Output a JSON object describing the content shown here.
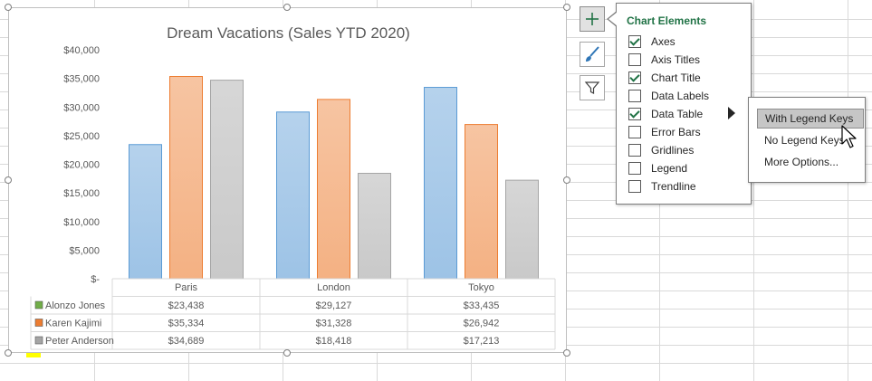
{
  "chart_data": {
    "type": "bar",
    "title": "Dream Vacations (Sales YTD 2020)",
    "categories": [
      "Paris",
      "London",
      "Tokyo"
    ],
    "series": [
      {
        "name": "Alonzo Jones",
        "values": [
          23438,
          29127,
          33435
        ],
        "color": "#9dc3e6",
        "key_color": "#70ad47"
      },
      {
        "name": "Karen Kajimi",
        "values": [
          35334,
          31328,
          26942
        ],
        "color": "#f4b183",
        "key_color": "#ed7d31"
      },
      {
        "name": "Peter Anderson",
        "values": [
          34689,
          18418,
          17213
        ],
        "color": "#c9c9c9",
        "key_color": "#a5a5a5"
      }
    ],
    "table_values": [
      [
        "$23,438",
        "$29,127",
        "$33,435"
      ],
      [
        "$35,334",
        "$31,328",
        "$26,942"
      ],
      [
        "$34,689",
        "$18,418",
        "$17,213"
      ]
    ],
    "y_ticks": [
      "$-",
      "$5,000",
      "$10,000",
      "$15,000",
      "$20,000",
      "$25,000",
      "$30,000",
      "$35,000",
      "$40,000"
    ],
    "ylim": [
      0,
      40000
    ],
    "data_table": "with legend keys",
    "gridlines": false,
    "legend": false
  },
  "chart_elements": {
    "title": "Chart Elements",
    "items": [
      {
        "label": "Axes",
        "checked": true
      },
      {
        "label": "Axis Titles",
        "checked": false
      },
      {
        "label": "Chart Title",
        "checked": true
      },
      {
        "label": "Data Labels",
        "checked": false
      },
      {
        "label": "Data Table",
        "checked": true
      },
      {
        "label": "Error Bars",
        "checked": false
      },
      {
        "label": "Gridlines",
        "checked": false
      },
      {
        "label": "Legend",
        "checked": false
      },
      {
        "label": "Trendline",
        "checked": false
      }
    ]
  },
  "data_table_submenu": {
    "items": [
      "With Legend Keys",
      "No Legend Keys",
      "More Options..."
    ],
    "hovered": "With Legend Keys"
  },
  "side_buttons": [
    {
      "icon": "plus-icon",
      "active": true
    },
    {
      "icon": "brush-icon",
      "active": false
    },
    {
      "icon": "funnel-icon",
      "active": false
    }
  ],
  "colors": {
    "accent": "#217346",
    "highlight": "#ffff00"
  }
}
